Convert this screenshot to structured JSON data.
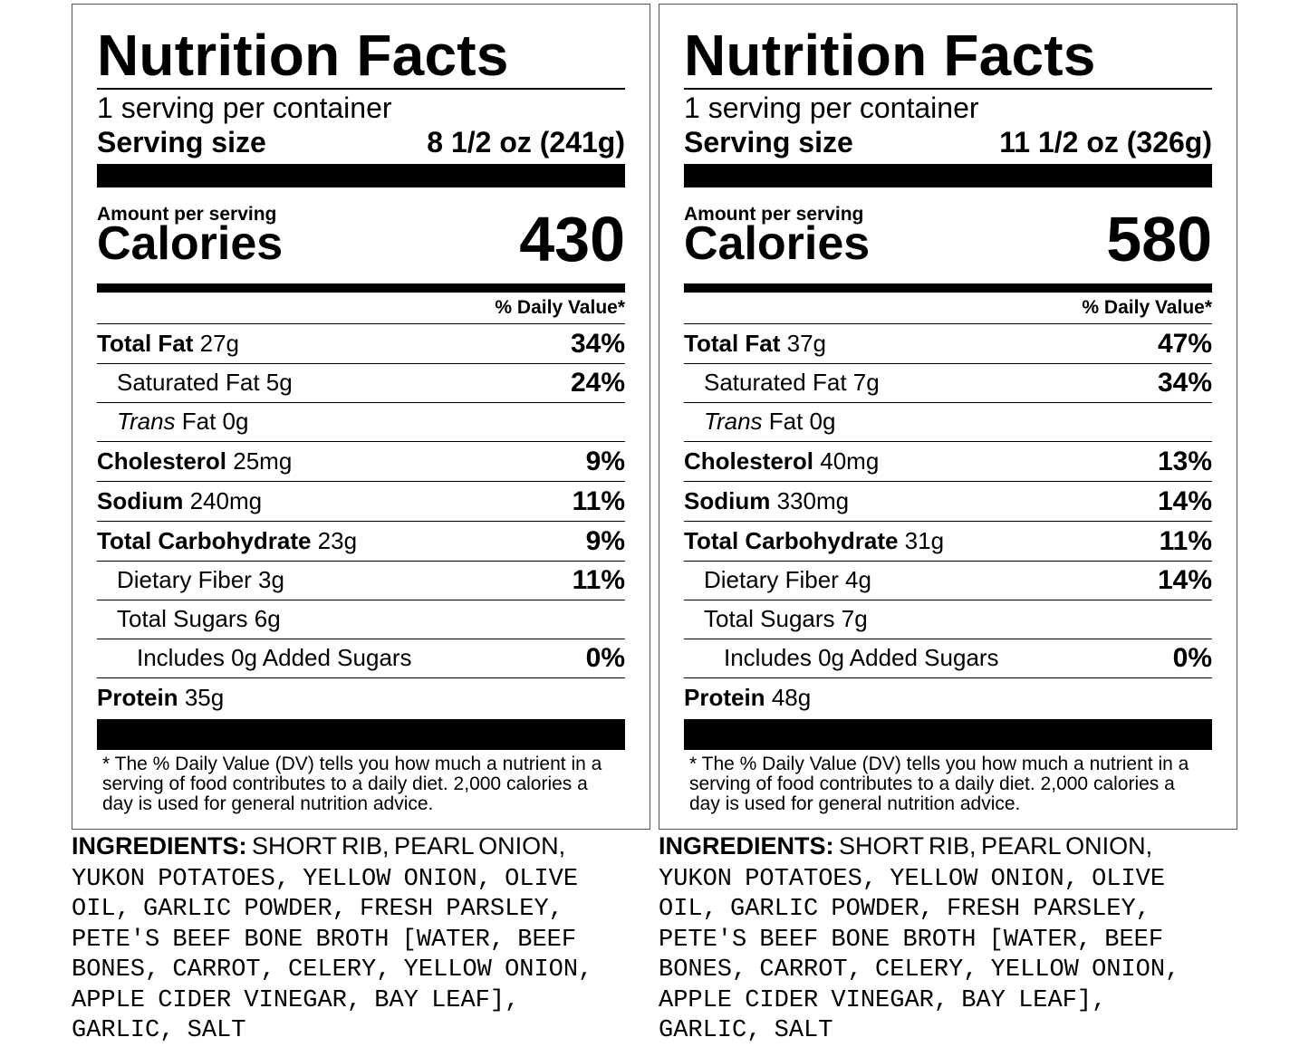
{
  "labels": [
    {
      "title": "Nutrition Facts",
      "servings": "1 serving per container",
      "serving_size_label": "Serving size",
      "serving_size_value": "8 1/2 oz (241g)",
      "amount_label": "Amount per serving",
      "calories_label": "Calories",
      "calories_value": "430",
      "dv_header": "% Daily Value*",
      "total_fat": {
        "name": "Total Fat",
        "amount": "27g",
        "pct": "34%"
      },
      "saturated_fat": {
        "name": "Saturated Fat 5g",
        "pct": "24%"
      },
      "trans_fat": {
        "italic": "Trans",
        "name": " Fat 0g"
      },
      "cholesterol": {
        "name": "Cholesterol",
        "amount": "25mg",
        "pct": "9%"
      },
      "sodium": {
        "name": "Sodium",
        "amount": "240mg",
        "pct": "11%"
      },
      "total_carb": {
        "name": "Total Carbohydrate",
        "amount": "23g",
        "pct": "9%"
      },
      "dietary_fiber": {
        "name": "Dietary Fiber 3g",
        "pct": "11%"
      },
      "total_sugars": {
        "name": "Total Sugars 6g"
      },
      "added_sugars": {
        "name": "Includes 0g Added Sugars",
        "pct": "0%"
      },
      "protein": {
        "name": "Protein",
        "amount": "35g"
      },
      "footnote": "* The % Daily Value (DV) tells you how much a nutrient in a serving of food contributes to a daily diet. 2,000 calories a day is used for general nutrition advice.",
      "ingredients_label": "INGREDIENTS:",
      "ingredients_first": " SHORT RIB, PEARL ONION,",
      "ingredients_lines": [
        "YUKON POTATOES, YELLOW ONION, OLIVE",
        "OIL, GARLIC POWDER, FRESH PARSLEY,",
        "PETE'S BEEF BONE BROTH [WATER, BEEF",
        "BONES, CARROT, CELERY, YELLOW ONION,",
        "APPLE CIDER VINEGAR, BAY LEAF],",
        "GARLIC, SALT"
      ]
    },
    {
      "title": "Nutrition Facts",
      "servings": "1 serving per container",
      "serving_size_label": "Serving size",
      "serving_size_value": "11 1/2 oz (326g)",
      "amount_label": "Amount per serving",
      "calories_label": "Calories",
      "calories_value": "580",
      "dv_header": "% Daily Value*",
      "total_fat": {
        "name": "Total Fat",
        "amount": "37g",
        "pct": "47%"
      },
      "saturated_fat": {
        "name": "Saturated Fat 7g",
        "pct": "34%"
      },
      "trans_fat": {
        "italic": "Trans",
        "name": " Fat 0g"
      },
      "cholesterol": {
        "name": "Cholesterol",
        "amount": "40mg",
        "pct": "13%"
      },
      "sodium": {
        "name": "Sodium",
        "amount": "330mg",
        "pct": "14%"
      },
      "total_carb": {
        "name": "Total Carbohydrate",
        "amount": "31g",
        "pct": "11%"
      },
      "dietary_fiber": {
        "name": "Dietary Fiber 4g",
        "pct": "14%"
      },
      "total_sugars": {
        "name": "Total Sugars 7g"
      },
      "added_sugars": {
        "name": "Includes 0g Added Sugars",
        "pct": "0%"
      },
      "protein": {
        "name": "Protein",
        "amount": "48g"
      },
      "footnote": "* The % Daily Value (DV) tells you how much a nutrient in a serving of food contributes to a daily diet. 2,000 calories a day is used for general nutrition advice.",
      "ingredients_label": "INGREDIENTS:",
      "ingredients_first": " SHORT RIB, PEARL ONION,",
      "ingredients_lines": [
        "YUKON POTATOES, YELLOW ONION, OLIVE",
        "OIL, GARLIC POWDER, FRESH PARSLEY,",
        "PETE'S BEEF BONE BROTH [WATER, BEEF",
        "BONES, CARROT, CELERY, YELLOW ONION,",
        "APPLE CIDER VINEGAR, BAY LEAF],",
        "GARLIC, SALT"
      ]
    }
  ]
}
